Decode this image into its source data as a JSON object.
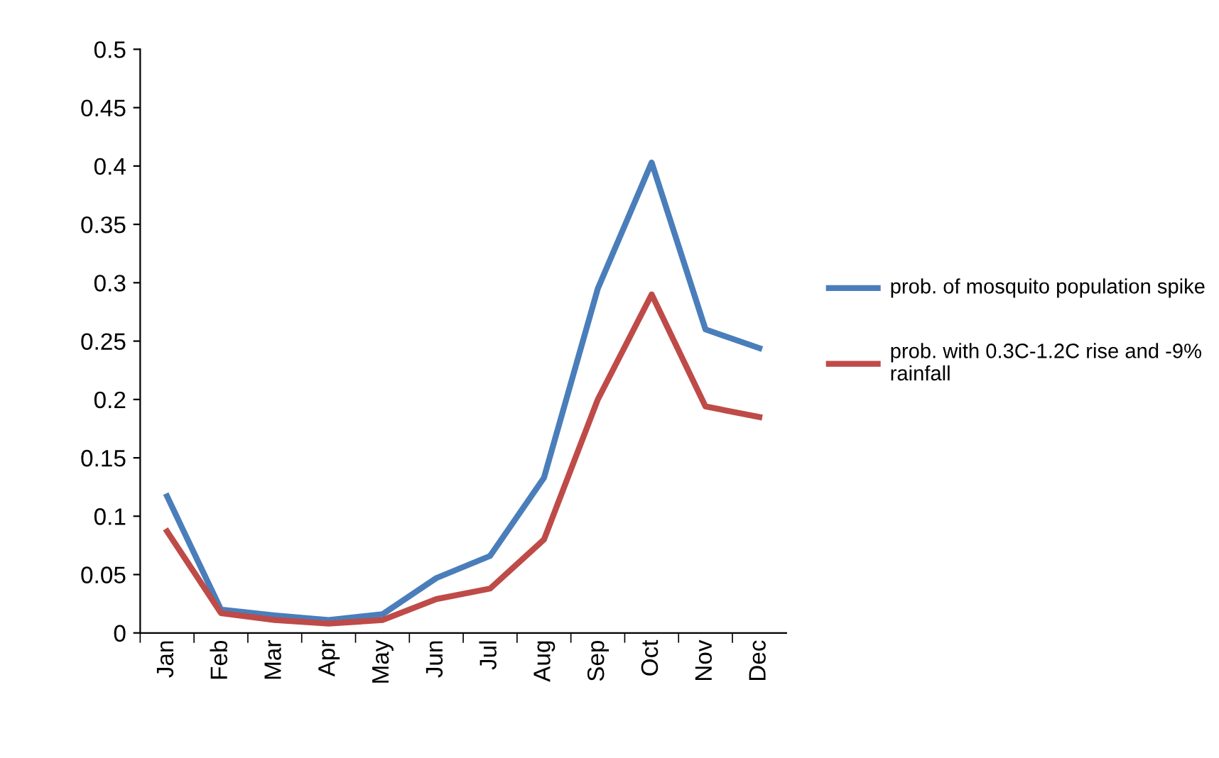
{
  "chart_data": {
    "type": "line",
    "categories": [
      "Jan",
      "Feb",
      "Mar",
      "Apr",
      "May",
      "Jun",
      "Jul",
      "Aug",
      "Sep",
      "Oct",
      "Nov",
      "Dec"
    ],
    "series": [
      {
        "name": "prob. of mosquito population spike",
        "color": "#4a7ebb",
        "values": [
          0.117,
          0.02,
          0.015,
          0.011,
          0.016,
          0.047,
          0.066,
          0.133,
          0.295,
          0.403,
          0.26,
          0.244
        ]
      },
      {
        "name": "prob. with 0.3C-1.2C rise and -9% rainfall",
        "color": "#be4b48",
        "values": [
          0.087,
          0.017,
          0.011,
          0.008,
          0.011,
          0.029,
          0.038,
          0.08,
          0.2,
          0.29,
          0.194,
          0.185
        ]
      }
    ],
    "ylim": [
      0,
      0.5
    ],
    "yticks": [
      0,
      0.05,
      0.1,
      0.15,
      0.2,
      0.25,
      0.3,
      0.35,
      0.4,
      0.45,
      0.5
    ],
    "grid": false,
    "legend": "right",
    "marker": "none",
    "line_style": "solid"
  }
}
